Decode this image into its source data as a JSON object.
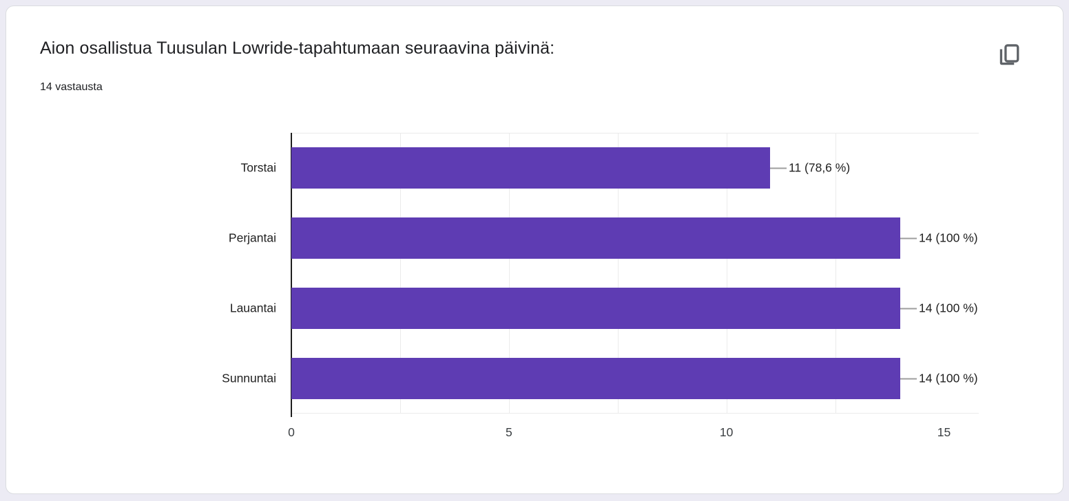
{
  "card": {
    "title": "Aion osallistua Tuusulan Lowride-tapahtumaan seuraavina päivinä:",
    "subtitle": "14 vastausta"
  },
  "colors": {
    "bar": "#5e3cb3",
    "page_background": "#ecebf4",
    "card_border": "#dadce0",
    "icon": "#5f6368",
    "gridline": "#ebebeb",
    "axis": "#1f1f1f",
    "text": "#202124"
  },
  "chart_data": {
    "type": "bar",
    "orientation": "horizontal",
    "title": "Aion osallistua Tuusulan Lowride-tapahtumaan seuraavina päivinä:",
    "subtitle": "14 vastausta",
    "categories": [
      "Torstai",
      "Perjantai",
      "Lauantai",
      "Sunnuntai"
    ],
    "values": [
      11,
      14,
      14,
      14
    ],
    "value_labels": [
      "11 (78,6 %)",
      "14 (100 %)",
      "14 (100 %)",
      "14 (100 %)"
    ],
    "x_ticks": [
      0,
      5,
      10,
      15
    ],
    "xlim": [
      0,
      15.8
    ],
    "gridline_step": 2.5,
    "grid": true,
    "legend": "none",
    "bar_color": "#5e3cb3"
  }
}
